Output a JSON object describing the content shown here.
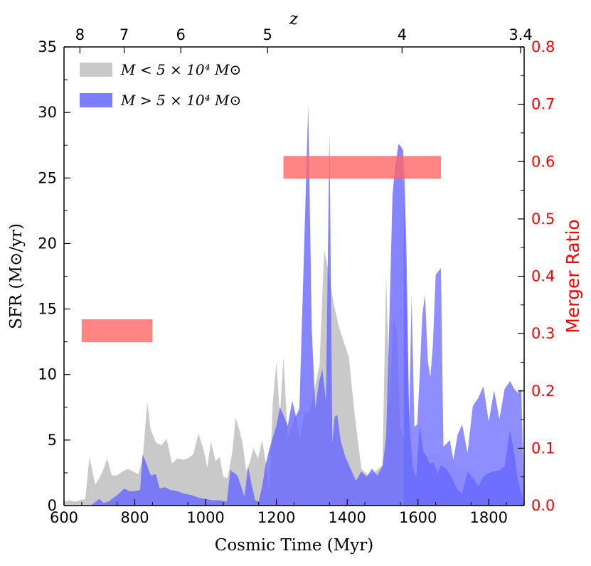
{
  "chart_data": {
    "type": "area",
    "xlabel": "Cosmic Time (Myr)",
    "ylabel": "SFR (M⊙/yr)",
    "y2label": "Merger Ratio",
    "top_axis_label": "z",
    "xlim": [
      600,
      1900
    ],
    "ylim": [
      0,
      35
    ],
    "y2lim": [
      0.0,
      0.8
    ],
    "x_ticks": [
      "600",
      "800",
      "1000",
      "1200",
      "1400",
      "1600",
      "1800"
    ],
    "y_ticks": [
      "0",
      "5",
      "10",
      "15",
      "20",
      "25",
      "30",
      "35"
    ],
    "y2_ticks": [
      "0.0",
      "0.1",
      "0.2",
      "0.3",
      "0.4",
      "0.5",
      "0.6",
      "0.7",
      "0.8"
    ],
    "top_ticks": [
      {
        "label": "8",
        "time": 645
      },
      {
        "label": "7",
        "time": 770
      },
      {
        "label": "6",
        "time": 930
      },
      {
        "label": "5",
        "time": 1175
      },
      {
        "label": "4",
        "time": 1555
      },
      {
        "label": "3.4",
        "time": 1890
      }
    ],
    "grid": false,
    "legend_position": "top-left",
    "series": [
      {
        "name": "M < 5 × 10⁴ M⊙",
        "color": "#c0c0c0",
        "x": [
          600,
          615,
          630,
          645,
          660,
          672,
          688,
          700,
          712,
          722,
          735,
          750,
          765,
          780,
          795,
          810,
          822,
          835,
          845,
          860,
          875,
          890,
          905,
          920,
          935,
          950,
          965,
          980,
          995,
          1005,
          1015,
          1028,
          1040,
          1050,
          1062,
          1075,
          1085,
          1095,
          1105,
          1115,
          1125,
          1135,
          1148,
          1160,
          1170,
          1180,
          1190,
          1200,
          1210,
          1220,
          1232,
          1245,
          1255,
          1265,
          1280,
          1295,
          1310,
          1322,
          1335,
          1345,
          1360,
          1375,
          1390,
          1405,
          1420,
          1440,
          1460,
          1480,
          1500,
          1510,
          1520,
          1530,
          1540,
          1550,
          1560,
          1570,
          1580,
          1590,
          1600,
          1612,
          1625,
          1640,
          1655,
          1665,
          1670,
          1680,
          1695,
          1710,
          1725,
          1740,
          1755,
          1770,
          1785,
          1800,
          1815,
          1830,
          1845,
          1860,
          1870,
          1880,
          1890,
          1900
        ],
        "values": [
          0.3,
          0.4,
          0.3,
          0.4,
          0.5,
          3.7,
          1.6,
          2.1,
          2.8,
          3.6,
          2.3,
          2.3,
          2.6,
          2.8,
          2.6,
          2.4,
          3.5,
          7.9,
          5.8,
          4.8,
          4.6,
          5.1,
          3.2,
          3.6,
          3.5,
          3.6,
          3.9,
          5.5,
          4.2,
          2.9,
          4.9,
          3.4,
          3.7,
          2.2,
          2.1,
          4.0,
          6.7,
          5.8,
          4.7,
          2.6,
          3.3,
          4.4,
          3.6,
          5.0,
          3.2,
          1.2,
          7.9,
          10.9,
          6.9,
          11.4,
          5.2,
          6.1,
          7.0,
          5.1,
          7.1,
          7.2,
          9.2,
          10.7,
          19.5,
          18.2,
          15.7,
          13.8,
          12.5,
          11.3,
          7.2,
          2.8,
          2.3,
          2.6,
          3.1,
          17.7,
          8.2,
          14.2,
          13.5,
          5.9,
          5.2,
          5.6,
          4.2,
          3.6,
          3.2,
          3.1,
          3.7,
          4.0,
          3.9,
          4.0,
          3.8,
          3.5,
          3.3,
          3.0,
          2.8,
          2.7,
          2.4,
          1.4,
          0.9,
          2.5,
          2.0,
          1.5,
          2.2,
          2.5,
          2.5,
          2.8,
          3.0,
          0.0
        ]
      },
      {
        "name": "M > 5 × 10⁴ M⊙",
        "color": "#6666ff",
        "x": [
          600,
          650,
          665,
          675,
          685,
          700,
          712,
          725,
          740,
          755,
          770,
          785,
          800,
          815,
          822,
          830,
          845,
          860,
          870,
          885,
          900,
          920,
          940,
          960,
          980,
          1000,
          1020,
          1040,
          1060,
          1070,
          1080,
          1090,
          1100,
          1110,
          1120,
          1130,
          1140,
          1150,
          1160,
          1170,
          1180,
          1190,
          1200,
          1210,
          1220,
          1232,
          1245,
          1255,
          1265,
          1278,
          1290,
          1300,
          1310,
          1320,
          1330,
          1340,
          1350,
          1358,
          1365,
          1372,
          1382,
          1395,
          1410,
          1425,
          1440,
          1455,
          1470,
          1485,
          1500,
          1510,
          1518,
          1528,
          1535,
          1545,
          1552,
          1558,
          1565,
          1575,
          1585,
          1595,
          1605,
          1615,
          1625,
          1633,
          1645,
          1655,
          1665,
          1670,
          1680,
          1695,
          1710,
          1725,
          1740,
          1755,
          1770,
          1785,
          1800,
          1815,
          1830,
          1845,
          1860,
          1872,
          1882,
          1892,
          1900
        ],
        "values": [
          0.0,
          0.0,
          0.0,
          0.0,
          0.2,
          0.5,
          0.2,
          0.3,
          0.6,
          0.9,
          1.3,
          1.1,
          1.1,
          1.2,
          3.9,
          3.4,
          2.3,
          2.4,
          1.3,
          1.4,
          1.2,
          1.1,
          0.9,
          0.8,
          0.6,
          0.5,
          0.4,
          0.4,
          0.3,
          2.7,
          2.5,
          2.3,
          1.5,
          0.7,
          3.0,
          1.6,
          0.4,
          0.3,
          1.5,
          3.2,
          4.3,
          5.2,
          6.1,
          7.5,
          6.9,
          6.1,
          8.0,
          6.8,
          7.4,
          19.2,
          30.6,
          13.4,
          7.4,
          9.4,
          10.4,
          8.0,
          28.5,
          4.8,
          6.8,
          6.9,
          4.9,
          3.7,
          2.8,
          1.9,
          2.6,
          2.2,
          2.8,
          2.3,
          3.0,
          5.2,
          13.0,
          23.7,
          25.7,
          27.6,
          27.4,
          27.1,
          18.9,
          6.5,
          3.0,
          2.1,
          6.2,
          4.1,
          3.7,
          3.2,
          3.3,
          2.4,
          3.1,
          3.0,
          2.8,
          2.2,
          1.3,
          0.9,
          2.6,
          2.1,
          1.5,
          2.2,
          2.5,
          2.6,
          2.7,
          3.0,
          5.8,
          4.0,
          2.0,
          1.0,
          0.0
        ]
      }
    ],
    "extra_series": [
      {
        "name": "M > 5 × 10⁴ M⊙ (upper envelope)",
        "color": "#8888ff",
        "x": [
          1560,
          1568,
          1575,
          1582,
          1590,
          1598,
          1605,
          1612,
          1620,
          1628,
          1635,
          1642,
          1650,
          1658,
          1665,
          1672,
          1680,
          1690,
          1700,
          1712,
          1725,
          1740,
          1755,
          1770,
          1785,
          1800,
          1815,
          1830,
          1845,
          1860,
          1872,
          1882,
          1892,
          1900
        ],
        "values": [
          27.1,
          18.9,
          6.5,
          16.0,
          6.0,
          6.2,
          10.0,
          14.5,
          16.1,
          11.0,
          9.8,
          12.2,
          17.6,
          17.9,
          18.1,
          4.5,
          4.7,
          5.0,
          3.5,
          5.4,
          6.2,
          4.0,
          7.6,
          8.2,
          9.1,
          6.4,
          8.8,
          6.6,
          8.9,
          9.5,
          8.9,
          8.6,
          8.9,
          0.0
        ]
      }
    ],
    "merger_bars": [
      {
        "x_start": 650,
        "x_end": 850,
        "value": 0.305,
        "color": "#ff6666"
      },
      {
        "x_start": 1220,
        "x_end": 1665,
        "value": 0.59,
        "color": "#ff6666"
      }
    ]
  },
  "legend": {
    "entries": [
      {
        "label": "M < 5 × 10⁴ M⊙",
        "color": "#c0c0c0"
      },
      {
        "label": "M > 5 × 10⁴ M⊙",
        "color": "#6666ff"
      }
    ]
  }
}
